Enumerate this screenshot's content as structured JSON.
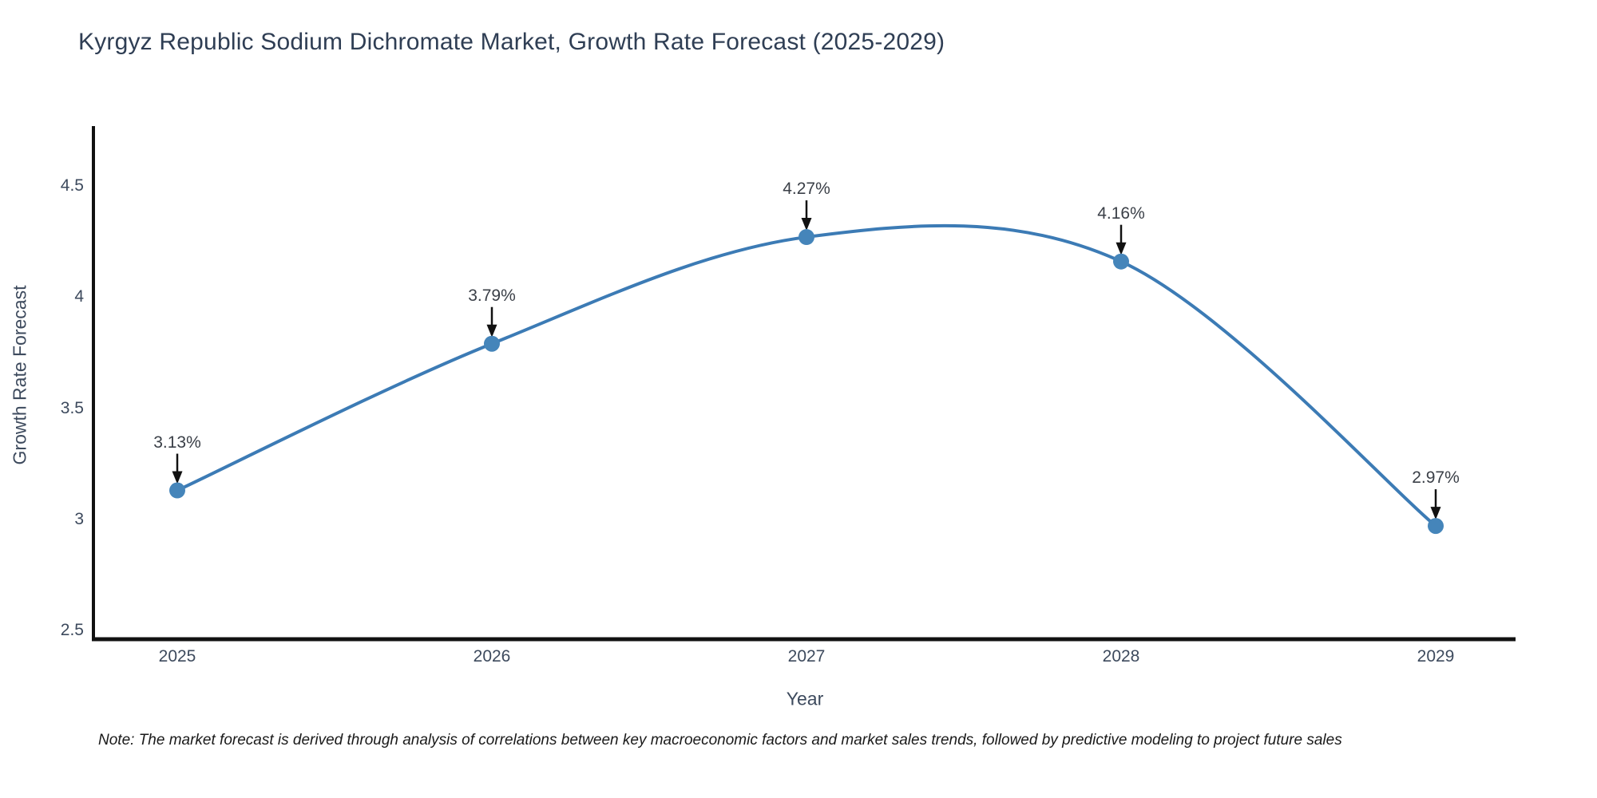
{
  "chart_data": {
    "type": "line",
    "title": "Kyrgyz Republic Sodium Dichromate Market, Growth Rate Forecast (2025-2029)",
    "categories": [
      "2025",
      "2026",
      "2027",
      "2028",
      "2029"
    ],
    "values": [
      3.13,
      3.79,
      4.27,
      4.16,
      2.97
    ],
    "point_labels": [
      "3.13%",
      "3.79%",
      "4.27%",
      "4.16%",
      "2.97%"
    ],
    "xlabel": "Year",
    "ylabel": "Growth Rate Forecast",
    "yticks": [
      4.5,
      4,
      3.5,
      3,
      2.5
    ],
    "ylim": [
      2.46,
      4.78
    ],
    "grid": false,
    "legend": "none",
    "curve": "smooth-spline",
    "colors": {
      "line": "#3c7bb5",
      "marker": "#4585ba",
      "axis": "#111111",
      "arrow": "#111111",
      "title_text": "#2f3e54",
      "tick_text": "#3d4a5d",
      "annotation_text": "#3a3f47",
      "note_text": "#1a1a1a"
    },
    "note": "Note: The market forecast is derived through analysis of correlations between key macroeconomic factors and market sales trends, followed by predictive modeling to project future sales"
  }
}
